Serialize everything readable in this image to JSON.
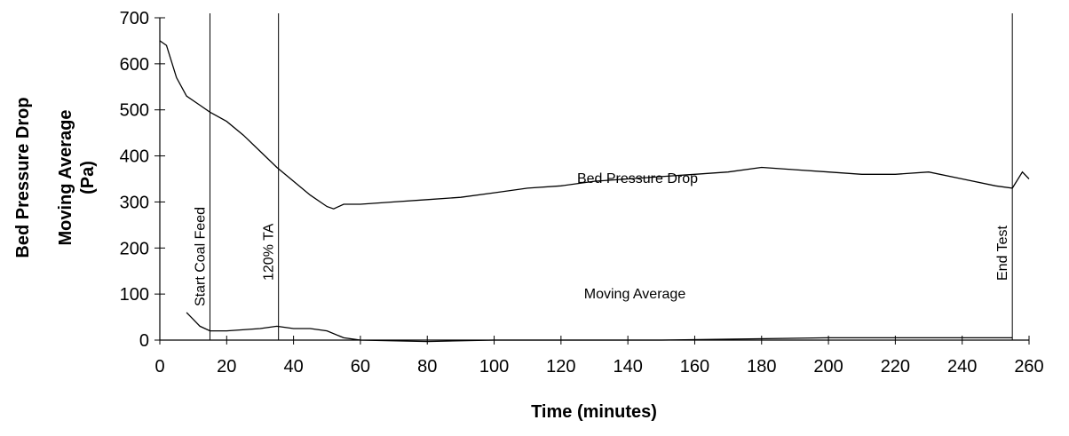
{
  "chart_data": {
    "type": "line",
    "x_label": "Time (minutes)",
    "y_label": [
      "Bed Pressure Drop",
      "Moving Average",
      "(Pa)"
    ],
    "xlim": [
      0,
      260
    ],
    "xticks": [
      0,
      20,
      40,
      60,
      80,
      100,
      120,
      140,
      160,
      180,
      200,
      220,
      240,
      260
    ],
    "ylim": [
      0,
      700
    ],
    "yticks": [
      0,
      100,
      200,
      300,
      400,
      500,
      600,
      700
    ],
    "series": [
      {
        "name": "Bed Pressure Drop",
        "color": "#000000",
        "x": [
          0,
          2,
          5,
          8,
          12,
          15,
          20,
          25,
          30,
          35,
          40,
          45,
          50,
          52,
          55,
          60,
          70,
          80,
          90,
          100,
          110,
          120,
          130,
          140,
          150,
          160,
          170,
          180,
          190,
          200,
          210,
          220,
          230,
          240,
          250,
          255,
          258,
          260
        ],
        "values": [
          650,
          640,
          570,
          530,
          510,
          495,
          475,
          445,
          410,
          375,
          345,
          315,
          290,
          285,
          295,
          295,
          300,
          305,
          310,
          320,
          330,
          335,
          345,
          350,
          355,
          360,
          365,
          375,
          370,
          365,
          360,
          360,
          365,
          350,
          335,
          330,
          365,
          350
        ]
      },
      {
        "name": "Moving Average",
        "color": "#000000",
        "x": [
          8,
          10,
          12,
          15,
          20,
          30,
          35,
          40,
          45,
          50,
          55,
          60,
          80,
          100,
          150,
          200,
          240,
          255
        ],
        "values": [
          60,
          45,
          30,
          20,
          20,
          25,
          30,
          25,
          25,
          20,
          5,
          0,
          -3,
          0,
          0,
          5,
          5,
          5
        ]
      }
    ],
    "markers": [
      {
        "x": 15,
        "label": "Start Coal Feed"
      },
      {
        "x": 35.5,
        "label": "120% TA"
      },
      {
        "x": 255,
        "label": "End Test"
      }
    ]
  }
}
